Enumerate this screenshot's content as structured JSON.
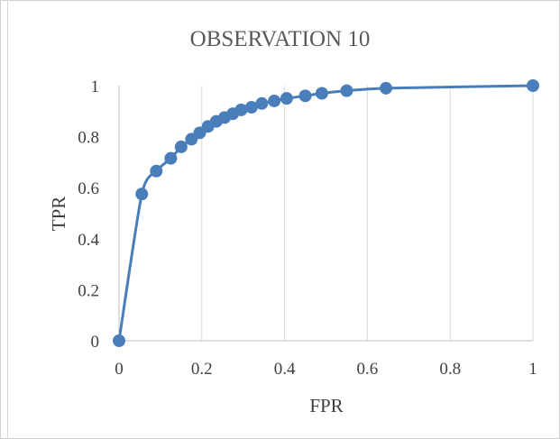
{
  "chart_data": {
    "type": "scatter",
    "title": "OBSERVATION 10",
    "xlabel": "FPR",
    "ylabel": "TPR",
    "xlim": [
      0,
      1
    ],
    "ylim": [
      0,
      1
    ],
    "xticks": [
      "0",
      "0.2",
      "0.4",
      "0.6",
      "0.8",
      "1"
    ],
    "yticks": [
      "0",
      "0.2",
      "0.4",
      "0.6",
      "0.8",
      "1"
    ],
    "grid": "vertical",
    "series": [
      {
        "color": "#4a7ebb",
        "x": [
          0,
          0.055,
          0.09,
          0.125,
          0.15,
          0.175,
          0.195,
          0.215,
          0.235,
          0.255,
          0.275,
          0.295,
          0.32,
          0.345,
          0.375,
          0.405,
          0.45,
          0.49,
          0.55,
          0.645,
          1.0
        ],
        "y": [
          0,
          0.575,
          0.665,
          0.715,
          0.76,
          0.79,
          0.815,
          0.84,
          0.86,
          0.875,
          0.89,
          0.905,
          0.915,
          0.93,
          0.94,
          0.95,
          0.96,
          0.97,
          0.98,
          0.99,
          1.0
        ]
      }
    ]
  }
}
